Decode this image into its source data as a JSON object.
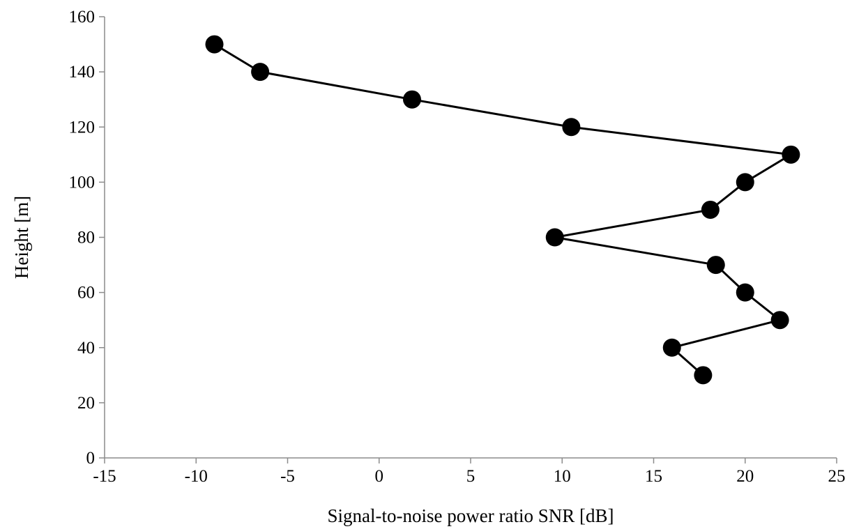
{
  "chart_data": {
    "type": "line",
    "title": "",
    "xlabel": "Signal-to-noise power ratio SNR [dB]",
    "ylabel": "Height [m]",
    "xlim": [
      -15,
      25
    ],
    "ylim": [
      0,
      160
    ],
    "xticks": [
      -15,
      -10,
      -5,
      0,
      5,
      10,
      15,
      20,
      25
    ],
    "yticks": [
      0,
      20,
      40,
      60,
      80,
      100,
      120,
      140,
      160
    ],
    "grid": false,
    "legend": "none",
    "colors": {
      "series": "#000000",
      "axis": "#8c8c8c"
    },
    "series": [
      {
        "points": [
          {
            "x": -9.0,
            "y": 150
          },
          {
            "x": -6.5,
            "y": 140
          },
          {
            "x": 1.8,
            "y": 130
          },
          {
            "x": 10.5,
            "y": 120
          },
          {
            "x": 22.5,
            "y": 110
          },
          {
            "x": 20.0,
            "y": 100
          },
          {
            "x": 18.1,
            "y": 90
          },
          {
            "x": 9.6,
            "y": 80
          },
          {
            "x": 18.4,
            "y": 70
          },
          {
            "x": 20.0,
            "y": 60
          },
          {
            "x": 21.9,
            "y": 50
          },
          {
            "x": 16.0,
            "y": 40
          },
          {
            "x": 17.7,
            "y": 30
          }
        ]
      }
    ]
  }
}
